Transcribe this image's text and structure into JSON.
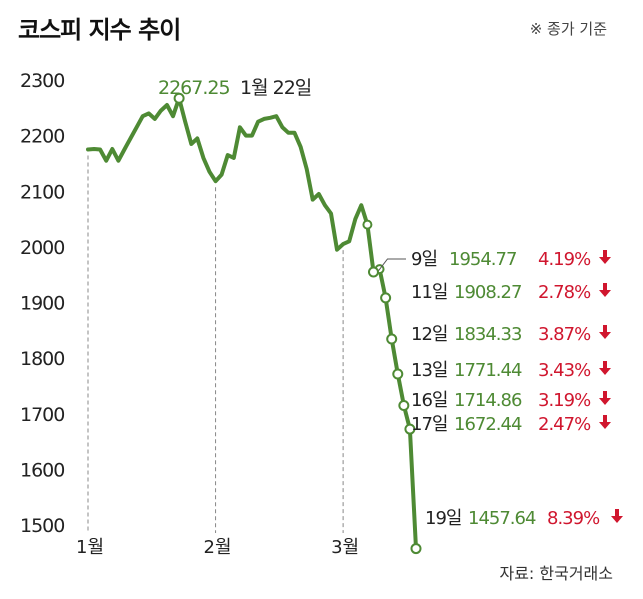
{
  "title": "코스피 지수 추이",
  "note": "※ 종가 기준",
  "source": "자료: 한국거래소",
  "colors": {
    "line": "#4e8a34",
    "value": "#4e8a34",
    "down": "#d0162e",
    "text": "#222222",
    "axis": "#888888"
  },
  "chart_data": {
    "type": "line",
    "ylim": [
      1500,
      2300
    ],
    "yticks": [
      "2300",
      "2200",
      "2100",
      "2000",
      "1900",
      "1800",
      "1700",
      "1600",
      "1500"
    ],
    "xticks": [
      "1월",
      "2월",
      "3월"
    ],
    "series": [
      {
        "values": [
          2175,
          2176,
          2175,
          2155,
          2176,
          2155,
          2175,
          2195,
          2215,
          2235,
          2240,
          2230,
          2245,
          2255,
          2235,
          2267.25,
          2225,
          2185,
          2195,
          2160,
          2135,
          2118,
          2130,
          2165,
          2160,
          2215,
          2200,
          2200,
          2225,
          2230,
          2232,
          2235,
          2215,
          2205,
          2205,
          2180,
          2140,
          2085,
          2095,
          2075,
          2060,
          1995,
          2005,
          2010,
          2050,
          2075,
          2040,
          1954.77,
          1960,
          1908.27,
          1834.33,
          1771.44,
          1714.86,
          1672.44,
          1457.64
        ]
      }
    ],
    "peak_label": {
      "value": "2267.25",
      "date": "1월 22일"
    },
    "annotations": [
      {
        "date": "9일",
        "value": "1954.77",
        "change": "4.19%"
      },
      {
        "date": "11일",
        "value": "1908.27",
        "change": "2.78%"
      },
      {
        "date": "12일",
        "value": "1834.33",
        "change": "3.87%"
      },
      {
        "date": "13일",
        "value": "1771.44",
        "change": "3.43%"
      },
      {
        "date": "16일",
        "value": "1714.86",
        "change": "3.19%"
      },
      {
        "date": "17일",
        "value": "1672.44",
        "change": "2.47%"
      },
      {
        "date": "19일",
        "value": "1457.64",
        "change": "8.39%"
      }
    ]
  }
}
